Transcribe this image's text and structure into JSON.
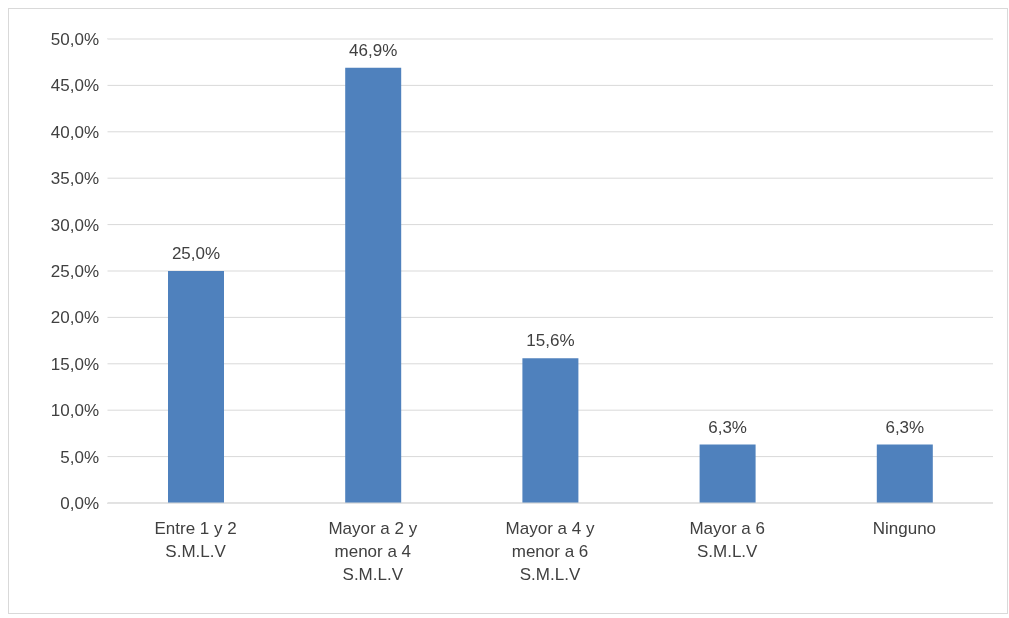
{
  "chart_data": {
    "type": "bar",
    "categories": [
      "Entre 1 y 2 S.M.L.V",
      "Mayor a 2 y menor a 4 S.M.L.V",
      "Mayor a 4 y menor a 6 S.M.L.V",
      "Mayor a 6 S.M.L.V",
      "Ninguno"
    ],
    "values": [
      25.0,
      46.9,
      15.6,
      6.3,
      6.3
    ],
    "value_labels": [
      "25,0%",
      "46,9%",
      "15,6%",
      "6,3%",
      "6,3%"
    ],
    "color": "#4f81bd",
    "ylim": [
      0,
      50
    ],
    "yticks": [
      {
        "value": 0,
        "label": "0,0%"
      },
      {
        "value": 5,
        "label": "5,0%"
      },
      {
        "value": 10,
        "label": "10,0%"
      },
      {
        "value": 15,
        "label": "15,0%"
      },
      {
        "value": 20,
        "label": "20,0%"
      },
      {
        "value": 25,
        "label": "25,0%"
      },
      {
        "value": 30,
        "label": "30,0%"
      },
      {
        "value": 35,
        "label": "35,0%"
      },
      {
        "value": 40,
        "label": "40,0%"
      },
      {
        "value": 45,
        "label": "45,0%"
      },
      {
        "value": 50,
        "label": "50,0%"
      }
    ],
    "grid": "y"
  }
}
